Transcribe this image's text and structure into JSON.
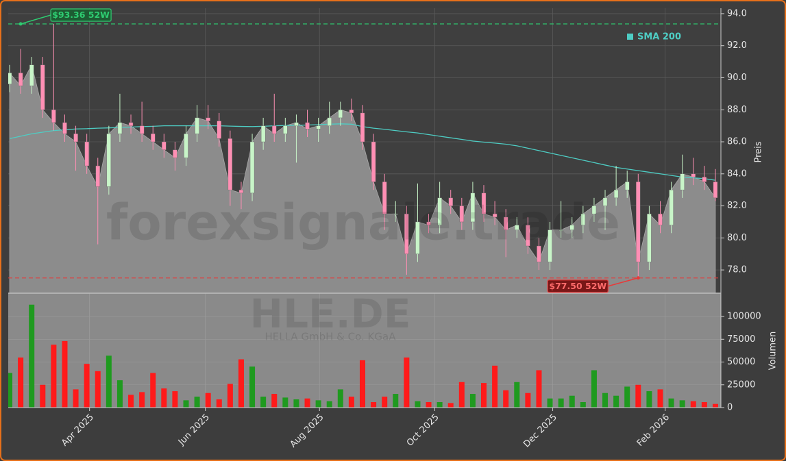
{
  "chart_data": {
    "type": "candlestick",
    "watermark": "forexsignale.trade",
    "ticker": "HLE.DE",
    "company": "HELLA GmbH & Co. KGaA",
    "x": [
      0,
      4,
      8,
      12,
      16,
      20,
      24,
      28,
      32,
      36,
      40,
      44,
      48,
      52,
      56,
      60,
      64,
      68,
      72,
      76,
      80,
      84,
      88,
      92,
      96,
      100,
      104,
      108,
      112,
      116,
      120,
      124,
      128,
      132,
      136,
      140,
      144,
      148,
      152,
      156,
      160,
      164,
      168,
      172,
      176,
      180,
      184,
      188,
      192,
      196,
      200,
      204,
      208,
      212,
      216,
      220,
      224,
      228,
      232,
      236,
      240,
      244,
      248,
      252,
      256
    ],
    "open": [
      89.6,
      90.3,
      89.5,
      90.8,
      88,
      87.2,
      86.5,
      86,
      84.5,
      83.2,
      86.5,
      87.2,
      87,
      86.5,
      86,
      85.5,
      85,
      86.5,
      87.5,
      87.3,
      86.2,
      83,
      82.8,
      86,
      87,
      86.5,
      87,
      87.2,
      86.8,
      87,
      87.5,
      88,
      87.8,
      86,
      83.5,
      81.5,
      81.5,
      79,
      81,
      80.8,
      82.5,
      82,
      81,
      82.8,
      81.5,
      81.3,
      80.5,
      80.8,
      79.5,
      78.5,
      80.5,
      80.5,
      80.8,
      81.5,
      82,
      82.5,
      83,
      83.5,
      78.5,
      81.5,
      80.8,
      83,
      84,
      83.8,
      83.5
    ],
    "high": [
      90.8,
      91.8,
      91.3,
      91.3,
      93.36,
      87.7,
      87.0,
      86.5,
      85.0,
      87.0,
      89.0,
      87.7,
      88.5,
      87.0,
      86.5,
      86.0,
      87.0,
      88.3,
      88.3,
      87.8,
      86.7,
      83.5,
      86.5,
      87.5,
      89.0,
      87.5,
      87.7,
      88.0,
      87.5,
      88.5,
      88.5,
      88.7,
      88.3,
      86.5,
      84.0,
      82.3,
      82.0,
      83.4,
      81.5,
      83.5,
      83.0,
      82.5,
      83.5,
      83.3,
      82.3,
      81.8,
      81.3,
      81.3,
      80.0,
      81.0,
      82.3,
      81.3,
      82.0,
      82.5,
      83.0,
      84.5,
      84.2,
      84.0,
      82.0,
      82.3,
      83.5,
      85.2,
      85.0,
      84.5,
      84.3
    ],
    "low": [
      89.1,
      89.0,
      89.0,
      87.5,
      86.7,
      86.0,
      84.2,
      84.0,
      79.6,
      82.7,
      86.0,
      86.5,
      86.0,
      85.5,
      85.0,
      84.2,
      84.5,
      86.0,
      86.8,
      85.7,
      82.0,
      81.8,
      82.3,
      85.5,
      86.0,
      86.0,
      84.7,
      86.3,
      86.0,
      86.5,
      87.0,
      87.3,
      85.5,
      83.0,
      80.5,
      81.0,
      77.7,
      78.5,
      80.3,
      80.3,
      81.5,
      80.5,
      80.5,
      81.0,
      80.8,
      78.8,
      80.0,
      79.0,
      78.0,
      78.0,
      80.0,
      80.0,
      80.3,
      81.0,
      80.5,
      82.0,
      82.5,
      77.5,
      78.0,
      80.3,
      80.3,
      82.5,
      83.3,
      83.0,
      82.3
    ],
    "close": [
      90.3,
      89.5,
      90.8,
      88,
      87.2,
      86.5,
      86,
      84.5,
      83.2,
      86.5,
      87.2,
      87,
      86.5,
      86,
      85.5,
      85,
      86.5,
      87.5,
      87.3,
      86.2,
      83,
      82.8,
      86,
      87,
      86.5,
      87,
      87.2,
      86.8,
      87,
      87.5,
      88,
      87.8,
      86,
      83.5,
      81.5,
      81.5,
      79,
      81,
      80.8,
      82.5,
      82,
      81,
      82.8,
      81.5,
      81.3,
      80.5,
      80.8,
      79.5,
      78.5,
      80.5,
      80.5,
      80.8,
      81.5,
      82,
      82.5,
      83,
      83.5,
      78.5,
      81.5,
      80.8,
      83,
      84,
      83.8,
      83.5,
      82.5
    ],
    "up_color": "#c8f5c8",
    "down_color": "#ff8fb4",
    "area_color": "#8c8c8c",
    "xlim": [
      -0.5,
      258
    ],
    "xticks": [
      {
        "value": 29,
        "label": "Apr 2025"
      },
      {
        "value": 71,
        "label": "Jun 2025"
      },
      {
        "value": 112.4,
        "label": "Aug 2025"
      },
      {
        "value": 154.2,
        "label": "Oct 2025"
      },
      {
        "value": 197,
        "label": "Dec 2025"
      },
      {
        "value": 237.8,
        "label": "Feb 2026"
      }
    ],
    "ylabel": "Preis",
    "ylim": [
      76.55,
      94.34
    ],
    "yticks": [
      {
        "value": 78,
        "label": "78.0"
      },
      {
        "value": 80,
        "label": "80.0"
      },
      {
        "value": 82,
        "label": "82.0"
      },
      {
        "value": 84,
        "label": "84.0"
      },
      {
        "value": 86,
        "label": "86.0"
      },
      {
        "value": 88,
        "label": "88.0"
      },
      {
        "value": 90,
        "label": "90.0"
      },
      {
        "value": 92,
        "label": "92.0"
      },
      {
        "value": 94,
        "label": "94.0"
      }
    ],
    "grid": true,
    "sma": {
      "name": "SMA 200",
      "color": "#4ecdc4",
      "values": [
        86.2,
        86.35,
        86.5,
        86.6,
        86.7,
        86.75,
        86.8,
        86.82,
        86.85,
        86.87,
        86.9,
        86.92,
        86.95,
        86.97,
        87.0,
        87.0,
        87.0,
        87.0,
        87.0,
        87.0,
        86.98,
        86.96,
        86.95,
        86.97,
        87.0,
        87.02,
        87.03,
        87.05,
        87.07,
        87.1,
        87.12,
        87.1,
        86.95,
        86.85,
        86.78,
        86.7,
        86.62,
        86.55,
        86.45,
        86.35,
        86.25,
        86.15,
        86.05,
        85.98,
        85.92,
        85.85,
        85.75,
        85.6,
        85.45,
        85.3,
        85.15,
        85.0,
        84.85,
        84.7,
        84.55,
        84.4,
        84.3,
        84.2,
        84.1,
        84.0,
        83.9,
        83.8,
        83.75,
        83.7,
        83.6
      ]
    },
    "legend_position": "upper right",
    "levels": [
      {
        "value": 93.36,
        "label": "$93.36 52W",
        "color": "#2ecc71",
        "x": 4
      },
      {
        "value": 77.5,
        "label": "$77.50 52W",
        "color": "#e83a3a",
        "x": 228
      }
    ],
    "volume": {
      "ylabel": "Volumen",
      "up_color": "#1f9a1f",
      "down_color": "#ff1a1a",
      "ylim": [
        0,
        125600
      ],
      "yticks": [
        0,
        25000,
        50000,
        75000,
        100000
      ],
      "values": [
        38000,
        55000,
        113000,
        25000,
        69000,
        73000,
        20000,
        48000,
        40000,
        57000,
        30000,
        14000,
        17000,
        38000,
        21000,
        18000,
        8000,
        12000,
        16000,
        9000,
        26000,
        53000,
        45000,
        12000,
        15000,
        11000,
        9000,
        10000,
        8000,
        7000,
        20000,
        12000,
        52000,
        6000,
        12000,
        15000,
        55000,
        7000,
        6000,
        6000,
        5000,
        28000,
        15000,
        27000,
        46000,
        19000,
        28000,
        16000,
        41000,
        10000,
        10000,
        13000,
        6000,
        41000,
        16000,
        13000,
        23000,
        25000,
        18000,
        20000,
        10000,
        8000,
        7000,
        6000,
        4000
      ]
    }
  }
}
